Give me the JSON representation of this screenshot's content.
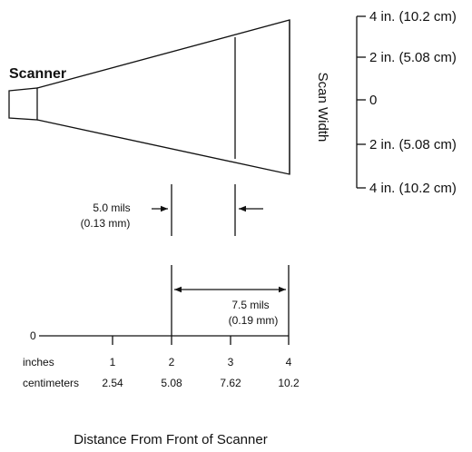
{
  "scanner_label": "Scanner",
  "scan_width_label": "Scan Width",
  "scale_labels": [
    "4 in. (10.2 cm)",
    "2 in. (5.08 cm)",
    "0",
    "2 in. (5.08 cm)",
    "4 in. (10.2 cm)"
  ],
  "min_width": {
    "mils": "5.0 mils",
    "mm": "(0.13 mm)"
  },
  "max_width": {
    "mils": "7.5 mils",
    "mm": "(0.19 mm)"
  },
  "axis": {
    "origin": "0",
    "inches_label": "inches",
    "centimeters_label": "centimeters",
    "inches": [
      "1",
      "2",
      "3",
      "4"
    ],
    "centimeters": [
      "2.54",
      "5.08",
      "7.62",
      "10.2"
    ]
  },
  "caption": "Distance From Front of Scanner"
}
